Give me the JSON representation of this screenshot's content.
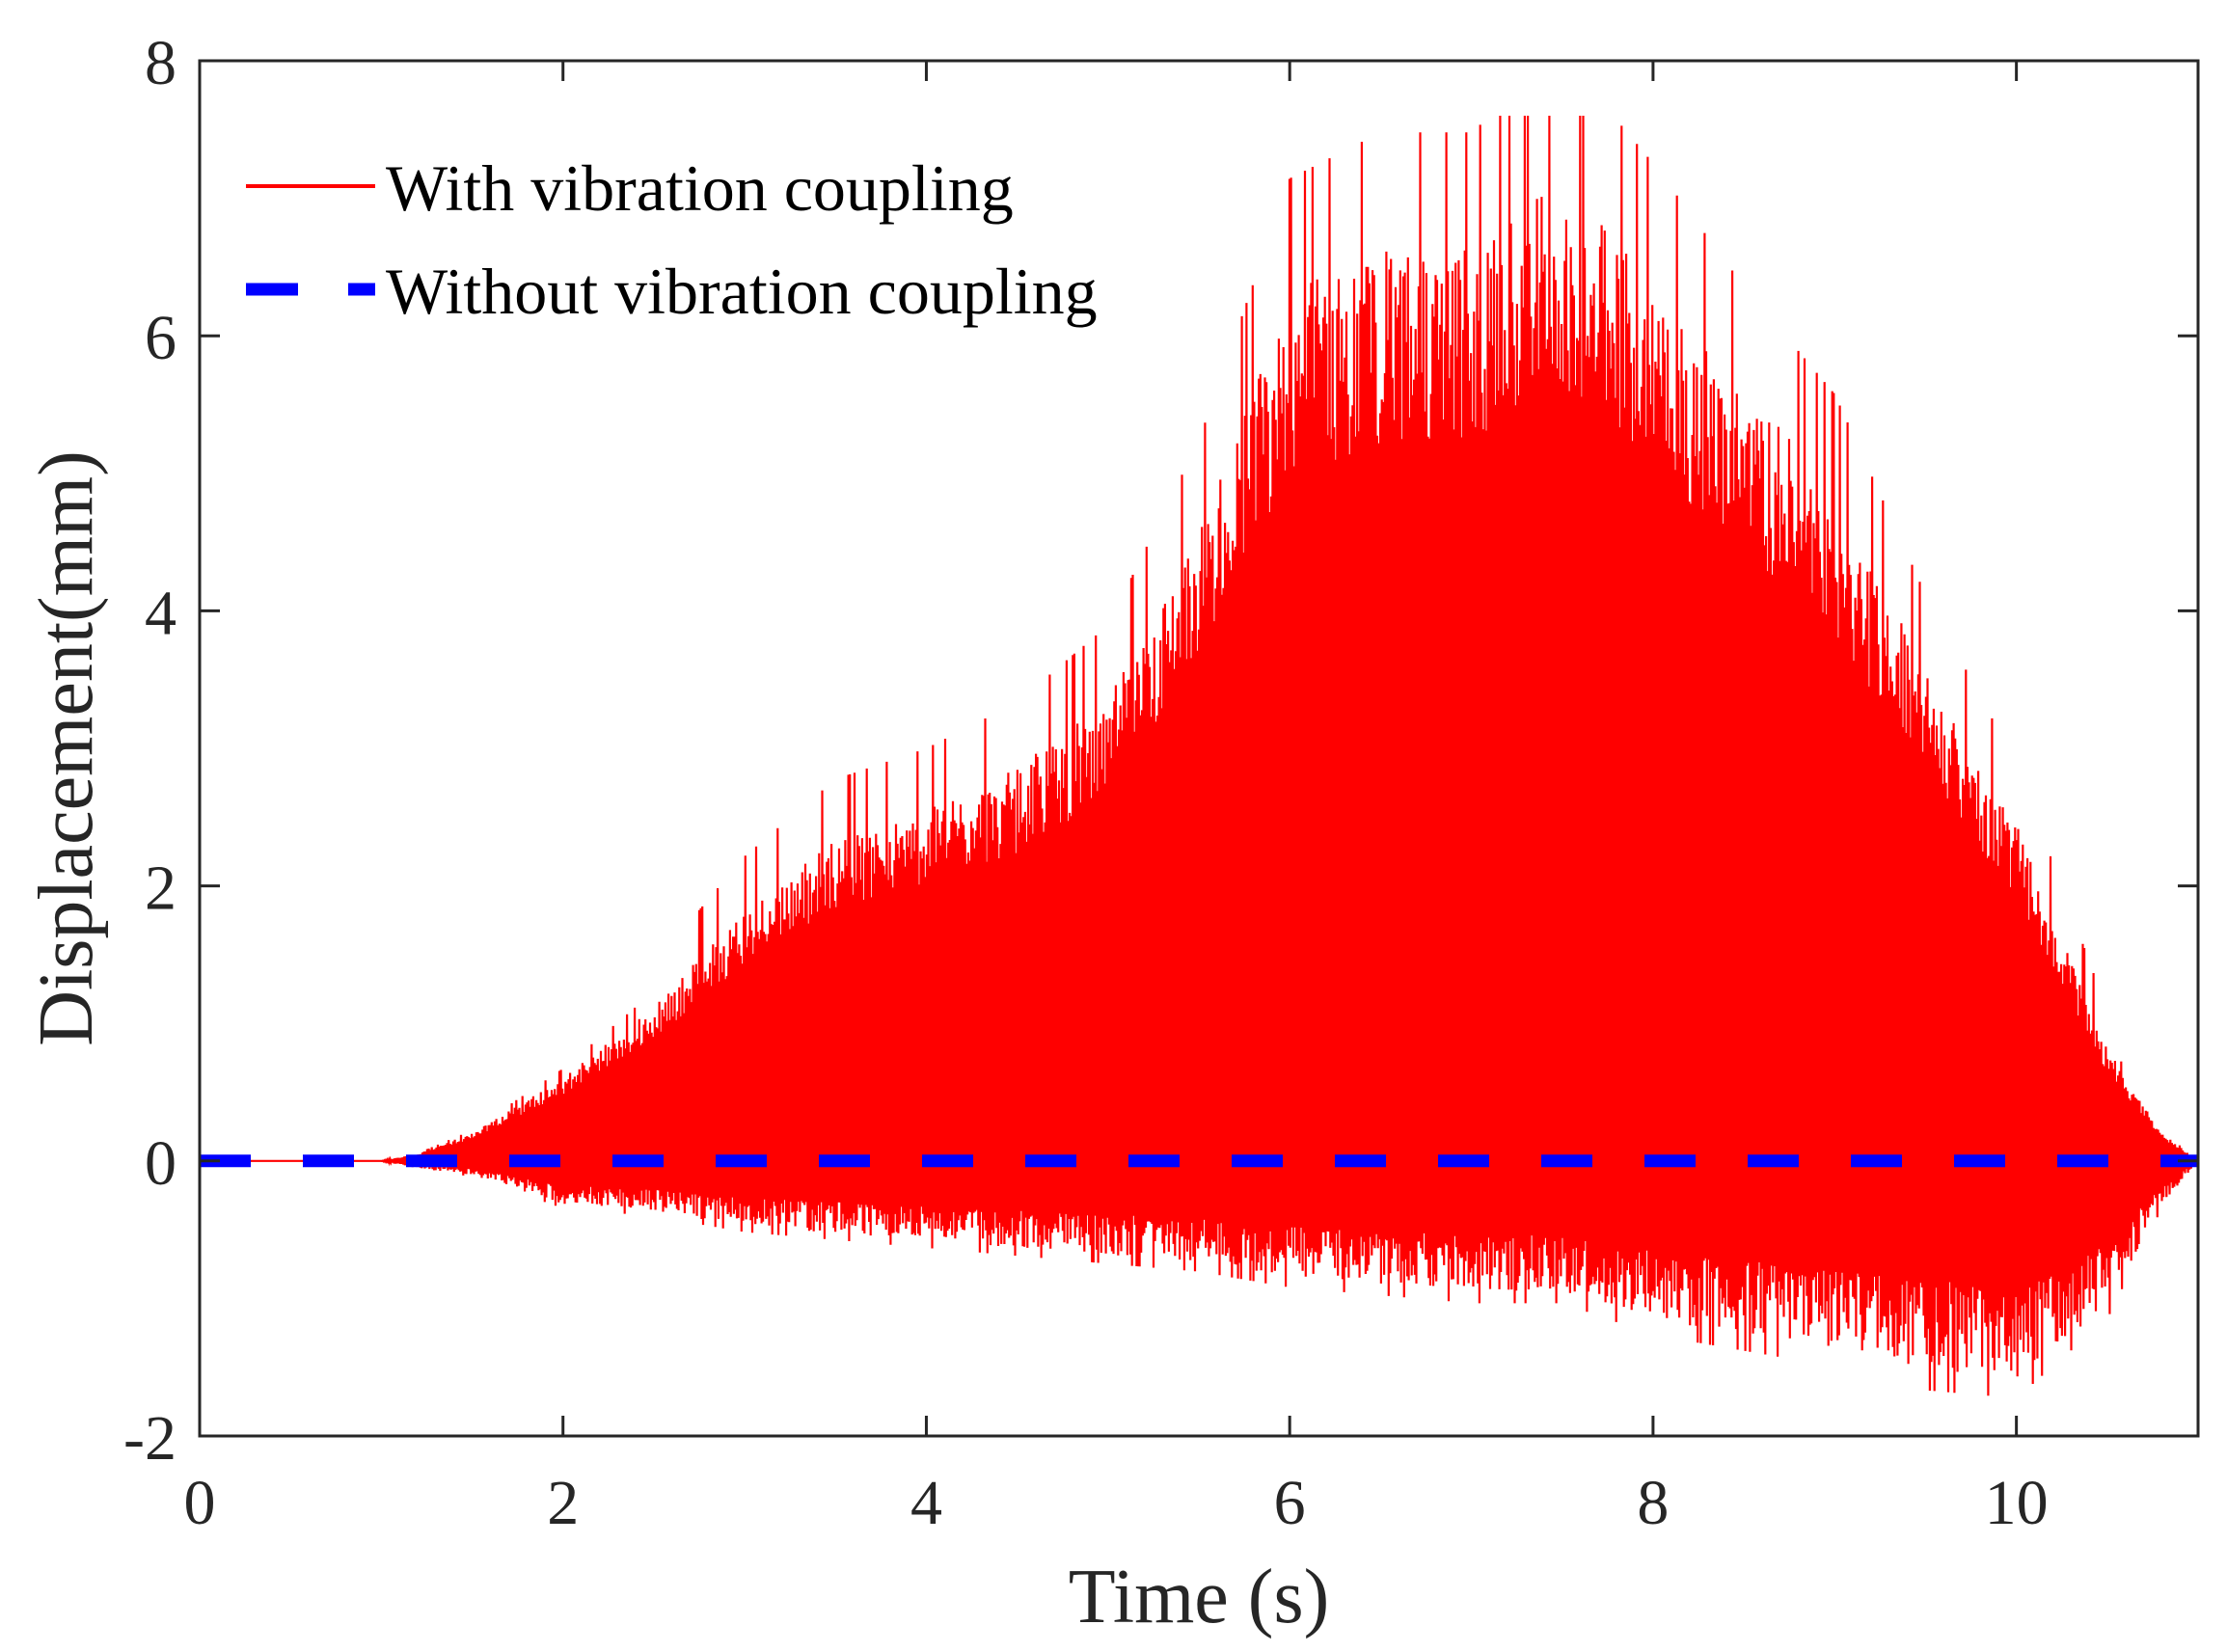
{
  "chart_data": {
    "type": "line",
    "title": "",
    "xlabel": "Time (s)",
    "ylabel": "Displacement(mm)",
    "xlim": [
      0,
      11
    ],
    "ylim": [
      -2,
      8
    ],
    "xticks": [
      "0",
      "2",
      "4",
      "6",
      "8",
      "10"
    ],
    "yticks": [
      "-2",
      "0",
      "2",
      "4",
      "6",
      "8"
    ],
    "grid": false,
    "legend_position": "top-left",
    "series": [
      {
        "name": "With vibration coupling",
        "color": "#ff0000",
        "style": "solid",
        "description_of_values": "dense oscillation; envelope upper/lower in mm",
        "t": [
          0,
          1.0,
          1.2,
          1.5,
          2.0,
          2.5,
          3.0,
          3.5,
          4.0,
          4.5,
          5.0,
          5.5,
          6.0,
          6.5,
          7.0,
          7.5,
          8.0,
          8.5,
          9.0,
          9.5,
          10.0,
          10.5,
          10.8,
          11.0
        ],
        "upper": [
          0,
          0,
          0.05,
          0.2,
          0.6,
          1.1,
          1.8,
          2.3,
          2.5,
          2.8,
          3.3,
          4.5,
          6.2,
          6.5,
          6.5,
          7.0,
          6.3,
          5.5,
          4.8,
          3.5,
          2.4,
          0.8,
          0.2,
          0
        ],
        "lower": [
          0,
          0,
          -0.05,
          -0.1,
          -0.3,
          -0.35,
          -0.45,
          -0.5,
          -0.55,
          -0.6,
          -0.65,
          -0.7,
          -0.8,
          -0.85,
          -0.9,
          -0.9,
          -1.1,
          -1.2,
          -1.3,
          -1.45,
          -1.5,
          -1.0,
          -0.3,
          0
        ],
        "peak": 7.6
      },
      {
        "name": "Without vibration coupling",
        "color": "#0000ff",
        "style": "dashed",
        "t": [
          0,
          11
        ],
        "values": [
          0,
          0
        ]
      }
    ]
  }
}
